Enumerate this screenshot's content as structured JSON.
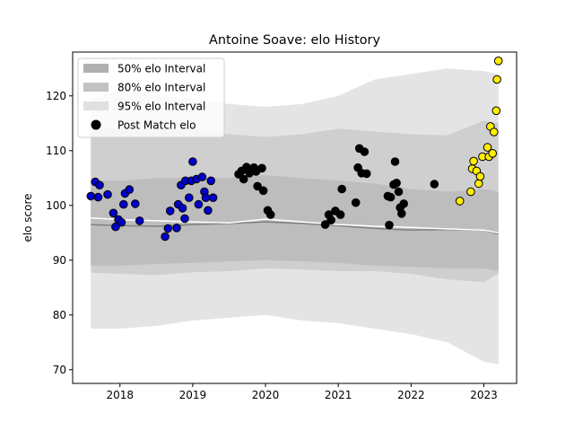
{
  "chart_data": {
    "type": "scatter",
    "title": "Antoine Soave: elo History",
    "xlabel": "",
    "ylabel": "elo score",
    "xlim": [
      2017.35,
      2023.45
    ],
    "ylim": [
      67.5,
      128.0
    ],
    "x_ticks": [
      2018,
      2019,
      2020,
      2021,
      2022,
      2023
    ],
    "x_tick_labels": [
      "2018",
      "2019",
      "2020",
      "2021",
      "2022",
      "2023"
    ],
    "y_ticks": [
      70,
      80,
      90,
      100,
      110,
      120
    ],
    "y_tick_labels": [
      "70",
      "80",
      "90",
      "100",
      "110",
      "120"
    ],
    "legend": {
      "position": "top-left",
      "entries": [
        "50% elo Interval",
        "80% elo Interval",
        "95% elo Interval",
        "Post Match elo"
      ]
    },
    "band_x": [
      2017.6,
      2018.0,
      2018.5,
      2019.0,
      2019.5,
      2020.0,
      2020.5,
      2021.0,
      2021.5,
      2022.0,
      2022.5,
      2023.0,
      2023.2
    ],
    "band_50": {
      "lower": [
        89.0,
        89.0,
        89.3,
        89.5,
        89.8,
        90.0,
        89.8,
        89.5,
        89.0,
        88.8,
        88.5,
        88.5,
        88.0
      ],
      "upper": [
        104.5,
        104.5,
        105.0,
        105.0,
        105.0,
        105.5,
        105.0,
        104.5,
        104.0,
        103.0,
        102.5,
        103.0,
        102.5
      ]
    },
    "band_80": {
      "lower": [
        87.7,
        87.5,
        87.3,
        87.8,
        88.0,
        88.5,
        88.3,
        88.0,
        88.0,
        87.5,
        86.5,
        86.0,
        87.5
      ],
      "upper": [
        114.3,
        114.0,
        114.0,
        113.8,
        113.0,
        112.5,
        113.0,
        114.0,
        113.5,
        113.0,
        112.8,
        115.5,
        115.0
      ]
    },
    "band_95": {
      "lower": [
        77.5,
        77.5,
        78.0,
        79.0,
        79.5,
        80.0,
        79.0,
        78.5,
        77.5,
        76.5,
        75.0,
        71.5,
        71.0
      ],
      "upper": [
        119.5,
        121.0,
        120.0,
        119.5,
        118.5,
        118.0,
        118.5,
        120.0,
        123.0,
        124.0,
        125.0,
        124.5,
        124.0
      ]
    },
    "mean_line": {
      "x": [
        2017.6,
        2018.0,
        2018.5,
        2019.0,
        2019.5,
        2020.0,
        2020.5,
        2021.0,
        2021.5,
        2022.0,
        2022.5,
        2023.0,
        2023.2
      ],
      "y": [
        96.5,
        96.3,
        96.2,
        96.5,
        96.7,
        97.0,
        96.7,
        96.3,
        95.8,
        95.5,
        95.6,
        95.5,
        94.8
      ]
    },
    "white_line": {
      "x": [
        2017.6,
        2018.0,
        2018.5,
        2019.0,
        2019.5,
        2020.0,
        2020.5,
        2021.0,
        2021.5,
        2022.0,
        2022.5,
        2023.0,
        2023.2
      ],
      "y": [
        97.7,
        97.4,
        97.2,
        97.0,
        96.8,
        97.5,
        97.0,
        96.5,
        96.2,
        96.0,
        95.7,
        95.5,
        95.0
      ]
    },
    "series": [
      {
        "color": "#0000cc",
        "points": [
          [
            2017.6,
            101.7
          ],
          [
            2017.66,
            104.3
          ],
          [
            2017.7,
            101.5
          ],
          [
            2017.72,
            103.7
          ],
          [
            2017.83,
            102.0
          ],
          [
            2017.91,
            98.6
          ],
          [
            2017.94,
            96.1
          ],
          [
            2017.98,
            97.4
          ],
          [
            2018.02,
            96.9
          ],
          [
            2018.05,
            100.2
          ],
          [
            2018.07,
            102.2
          ],
          [
            2018.13,
            102.9
          ],
          [
            2018.21,
            100.3
          ],
          [
            2018.27,
            97.2
          ],
          [
            2018.62,
            94.3
          ],
          [
            2018.66,
            95.8
          ],
          [
            2018.69,
            99.0
          ],
          [
            2018.78,
            95.9
          ],
          [
            2018.8,
            100.2
          ],
          [
            2018.84,
            103.7
          ],
          [
            2018.86,
            99.5
          ],
          [
            2018.89,
            97.6
          ],
          [
            2018.9,
            104.5
          ],
          [
            2018.95,
            101.4
          ],
          [
            2018.98,
            104.5
          ],
          [
            2019.0,
            108.0
          ],
          [
            2019.05,
            104.8
          ],
          [
            2019.08,
            100.2
          ],
          [
            2019.13,
            105.2
          ],
          [
            2019.16,
            102.5
          ],
          [
            2019.18,
            101.4
          ],
          [
            2019.21,
            99.1
          ],
          [
            2019.25,
            104.5
          ],
          [
            2019.28,
            101.4
          ]
        ]
      },
      {
        "color": "#000000",
        "points": [
          [
            2019.63,
            105.7
          ],
          [
            2019.67,
            106.3
          ],
          [
            2019.7,
            104.8
          ],
          [
            2019.74,
            107.0
          ],
          [
            2019.78,
            105.9
          ],
          [
            2019.84,
            106.9
          ],
          [
            2019.87,
            106.2
          ],
          [
            2019.89,
            103.5
          ],
          [
            2019.95,
            106.8
          ],
          [
            2019.97,
            102.7
          ],
          [
            2020.03,
            99.1
          ],
          [
            2020.07,
            98.3
          ],
          [
            2020.82,
            96.5
          ],
          [
            2020.87,
            98.3
          ],
          [
            2020.9,
            97.3
          ],
          [
            2020.96,
            99.0
          ],
          [
            2021.03,
            98.3
          ],
          [
            2021.05,
            103.0
          ],
          [
            2021.24,
            100.5
          ],
          [
            2021.27,
            106.9
          ],
          [
            2021.29,
            110.4
          ],
          [
            2021.32,
            105.9
          ],
          [
            2021.36,
            109.8
          ],
          [
            2021.39,
            105.8
          ],
          [
            2021.68,
            101.7
          ],
          [
            2021.7,
            96.4
          ],
          [
            2021.72,
            101.5
          ],
          [
            2021.76,
            103.8
          ],
          [
            2021.78,
            108.0
          ],
          [
            2021.8,
            104.1
          ],
          [
            2021.83,
            102.5
          ],
          [
            2021.85,
            99.6
          ],
          [
            2021.87,
            98.5
          ],
          [
            2021.9,
            100.3
          ],
          [
            2022.32,
            103.9
          ]
        ]
      },
      {
        "color": "#ffee00",
        "points": [
          [
            2022.67,
            100.8
          ],
          [
            2022.82,
            102.5
          ],
          [
            2022.84,
            106.7
          ],
          [
            2022.86,
            108.1
          ],
          [
            2022.9,
            106.3
          ],
          [
            2022.93,
            104.0
          ],
          [
            2022.95,
            105.3
          ],
          [
            2022.98,
            108.9
          ],
          [
            2023.05,
            110.6
          ],
          [
            2023.07,
            108.9
          ],
          [
            2023.09,
            114.4
          ],
          [
            2023.12,
            109.5
          ],
          [
            2023.14,
            113.4
          ],
          [
            2023.17,
            117.3
          ],
          [
            2023.18,
            123.0
          ],
          [
            2023.2,
            126.4
          ]
        ]
      }
    ]
  }
}
